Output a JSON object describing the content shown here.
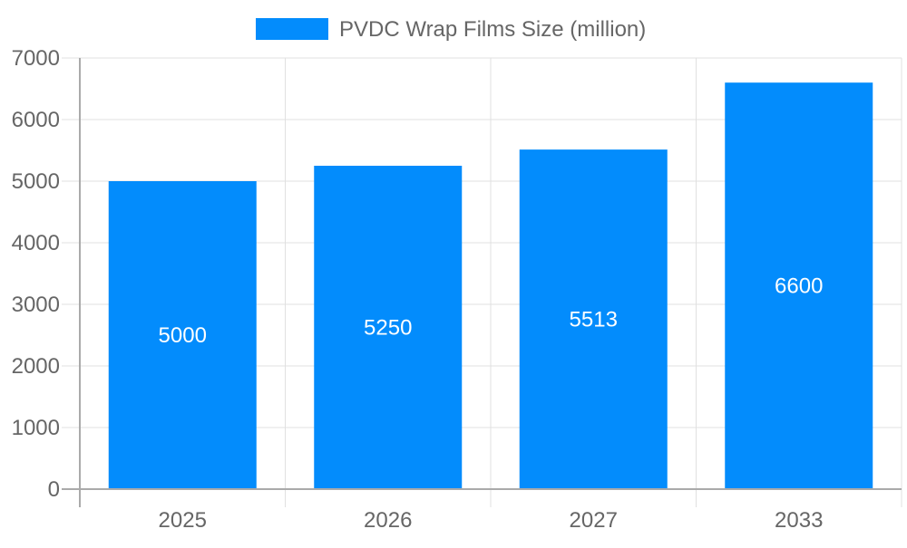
{
  "chart_data": {
    "type": "bar",
    "title": "",
    "xlabel": "",
    "ylabel": "",
    "categories": [
      "2025",
      "2026",
      "2027",
      "2033"
    ],
    "series": [
      {
        "name": "PVDC Wrap Films Size (million)",
        "values": [
          5000,
          5250,
          5513,
          6600
        ],
        "color": "#038cfc"
      }
    ],
    "data_labels": [
      "5000",
      "5250",
      "5513",
      "6600"
    ],
    "ylim": [
      0,
      7000
    ],
    "yticks": [
      "0",
      "1000",
      "2000",
      "3000",
      "4000",
      "5000",
      "6000",
      "7000"
    ],
    "grid": true,
    "legend": "top-center"
  }
}
